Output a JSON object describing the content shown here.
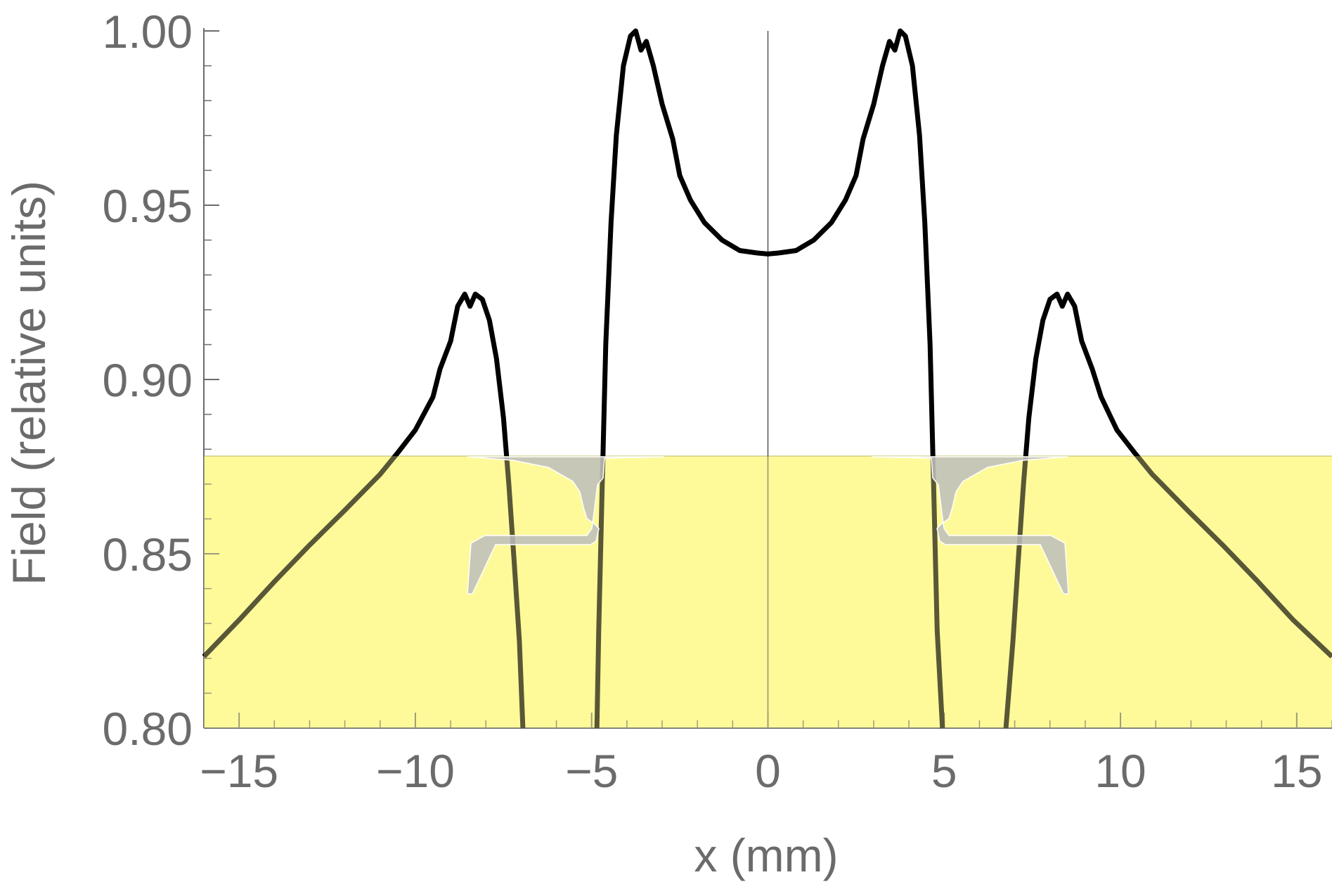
{
  "chart_data": {
    "type": "line",
    "xlabel": "x (mm)",
    "ylabel": "Field (relative units)",
    "xlim": [
      -16,
      16
    ],
    "ylim": [
      0.8,
      1.0
    ],
    "x_ticks": [
      -15,
      -10,
      -5,
      0,
      5,
      10,
      15
    ],
    "x_tick_labels": [
      "−15",
      "−10",
      "−5",
      "0",
      "5",
      "10",
      "15"
    ],
    "y_ticks": [
      0.8,
      0.85,
      0.9,
      0.95,
      1.0
    ],
    "y_tick_labels": [
      "0.80",
      "0.85",
      "0.90",
      "0.95",
      "1.00"
    ],
    "grid": false,
    "legend": "none",
    "colors": {
      "line": "#000000",
      "highlight_band": "#fefa9a",
      "axis": "#6b6b6b",
      "magnet_profile": "#bdbdbd"
    },
    "highlight_band": {
      "y_from": 0.8,
      "y_to": 0.878
    },
    "center_line_x": 0,
    "series": [
      {
        "values": [
          [
            -16.0,
            0.8205
          ],
          [
            -15.0,
            0.831
          ],
          [
            -14.0,
            0.842
          ],
          [
            -13.0,
            0.8525
          ],
          [
            -12.0,
            0.8625
          ],
          [
            -11.0,
            0.8728
          ],
          [
            -10.5,
            0.879
          ],
          [
            -10.0,
            0.8855
          ],
          [
            -9.5,
            0.895
          ],
          [
            -9.3,
            0.903
          ],
          [
            -9.0,
            0.911
          ],
          [
            -8.8,
            0.921
          ],
          [
            -8.6,
            0.9245
          ],
          [
            -8.45,
            0.921
          ],
          [
            -8.3,
            0.9245
          ],
          [
            -8.1,
            0.923
          ],
          [
            -7.9,
            0.917
          ],
          [
            -7.7,
            0.906
          ],
          [
            -7.5,
            0.889
          ],
          [
            -7.35,
            0.87
          ],
          [
            -7.2,
            0.848
          ],
          [
            -7.05,
            0.825
          ],
          [
            -6.95,
            0.8
          ],
          null,
          [
            -4.85,
            0.8
          ],
          [
            -4.8,
            0.828
          ],
          [
            -4.7,
            0.87
          ],
          [
            -4.6,
            0.91
          ],
          [
            -4.45,
            0.945
          ],
          [
            -4.3,
            0.97
          ],
          [
            -4.1,
            0.99
          ],
          [
            -3.9,
            0.9985
          ],
          [
            -3.75,
            1.0
          ],
          [
            -3.6,
            0.9945
          ],
          [
            -3.45,
            0.997
          ],
          [
            -3.25,
            0.99
          ],
          [
            -3.0,
            0.979
          ],
          [
            -2.7,
            0.969
          ],
          [
            -2.5,
            0.9585
          ],
          [
            -2.2,
            0.9515
          ],
          [
            -1.8,
            0.945
          ],
          [
            -1.3,
            0.94
          ],
          [
            -0.8,
            0.937
          ],
          [
            -0.3,
            0.9363
          ],
          [
            0.0,
            0.936
          ],
          [
            0.3,
            0.9363
          ],
          [
            0.8,
            0.937
          ],
          [
            1.3,
            0.94
          ],
          [
            1.8,
            0.945
          ],
          [
            2.2,
            0.9515
          ],
          [
            2.5,
            0.9585
          ],
          [
            2.7,
            0.969
          ],
          [
            3.0,
            0.979
          ],
          [
            3.25,
            0.99
          ],
          [
            3.45,
            0.997
          ],
          [
            3.6,
            0.9945
          ],
          [
            3.75,
            1.0
          ],
          [
            3.9,
            0.9985
          ],
          [
            4.1,
            0.99
          ],
          [
            4.3,
            0.97
          ],
          [
            4.45,
            0.945
          ],
          [
            4.6,
            0.91
          ],
          [
            4.7,
            0.87
          ],
          [
            4.8,
            0.828
          ],
          [
            4.95,
            0.8
          ],
          null,
          [
            6.75,
            0.8
          ],
          [
            6.95,
            0.825
          ],
          [
            7.1,
            0.848
          ],
          [
            7.25,
            0.87
          ],
          [
            7.4,
            0.889
          ],
          [
            7.6,
            0.906
          ],
          [
            7.8,
            0.917
          ],
          [
            8.0,
            0.923
          ],
          [
            8.2,
            0.9245
          ],
          [
            8.35,
            0.921
          ],
          [
            8.5,
            0.9245
          ],
          [
            8.7,
            0.921
          ],
          [
            8.9,
            0.911
          ],
          [
            9.2,
            0.903
          ],
          [
            9.45,
            0.895
          ],
          [
            9.9,
            0.8855
          ],
          [
            10.4,
            0.879
          ],
          [
            10.9,
            0.8728
          ],
          [
            11.9,
            0.8625
          ],
          [
            12.9,
            0.8525
          ],
          [
            13.9,
            0.842
          ],
          [
            14.9,
            0.831
          ],
          [
            16.0,
            0.8205
          ]
        ]
      }
    ]
  }
}
